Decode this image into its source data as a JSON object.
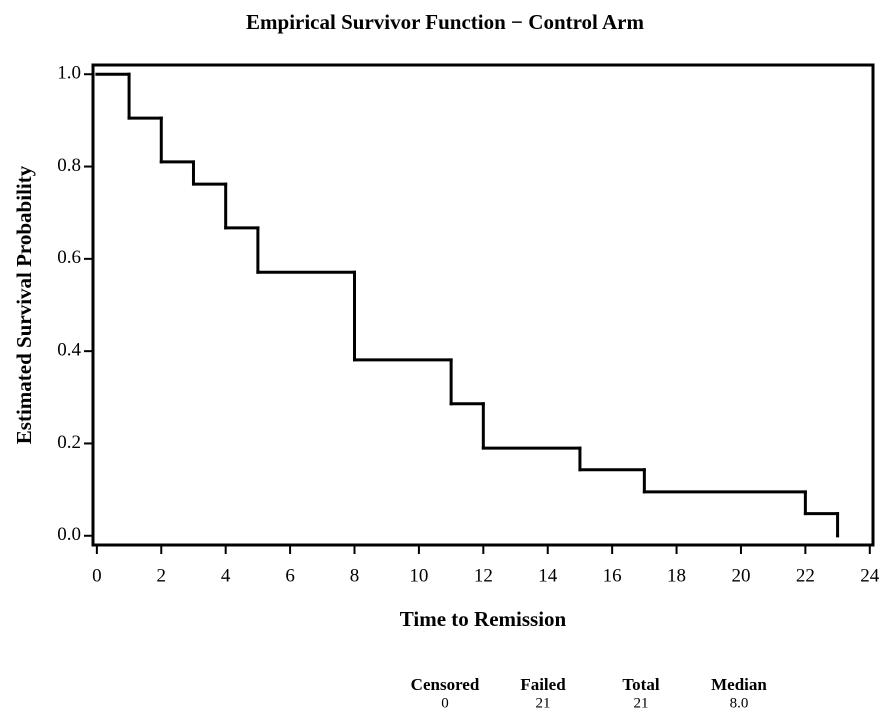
{
  "chart_data": {
    "type": "step",
    "title": "Empirical Survivor Function − Control Arm",
    "x_label": "Time to Remission",
    "y_label": "Estimated Survival Probability",
    "x": [
      0,
      1,
      2,
      3,
      4,
      5,
      8,
      11,
      12,
      15,
      17,
      22,
      23
    ],
    "values": [
      1.0,
      0.905,
      0.81,
      0.762,
      0.667,
      0.571,
      0.381,
      0.286,
      0.19,
      0.143,
      0.095,
      0.048,
      0.0
    ],
    "color": "#000000",
    "xlim": [
      -0.12,
      24.1
    ],
    "ylim": [
      -0.02,
      1.02
    ],
    "xticks": [
      0,
      2,
      4,
      6,
      8,
      10,
      12,
      14,
      16,
      18,
      20,
      22,
      24
    ],
    "yticks": [
      {
        "value": 0,
        "label": "0.0"
      },
      0.2,
      0.4,
      0.6,
      0.8,
      {
        "value": 1,
        "label": "1.0"
      }
    ],
    "summary": {
      "columns": [
        "Censored",
        "Failed",
        "Total",
        "Median"
      ],
      "values": [
        0,
        21,
        21,
        8
      ],
      "value_labels": [
        "0",
        "21",
        "21",
        "8.0"
      ]
    }
  }
}
